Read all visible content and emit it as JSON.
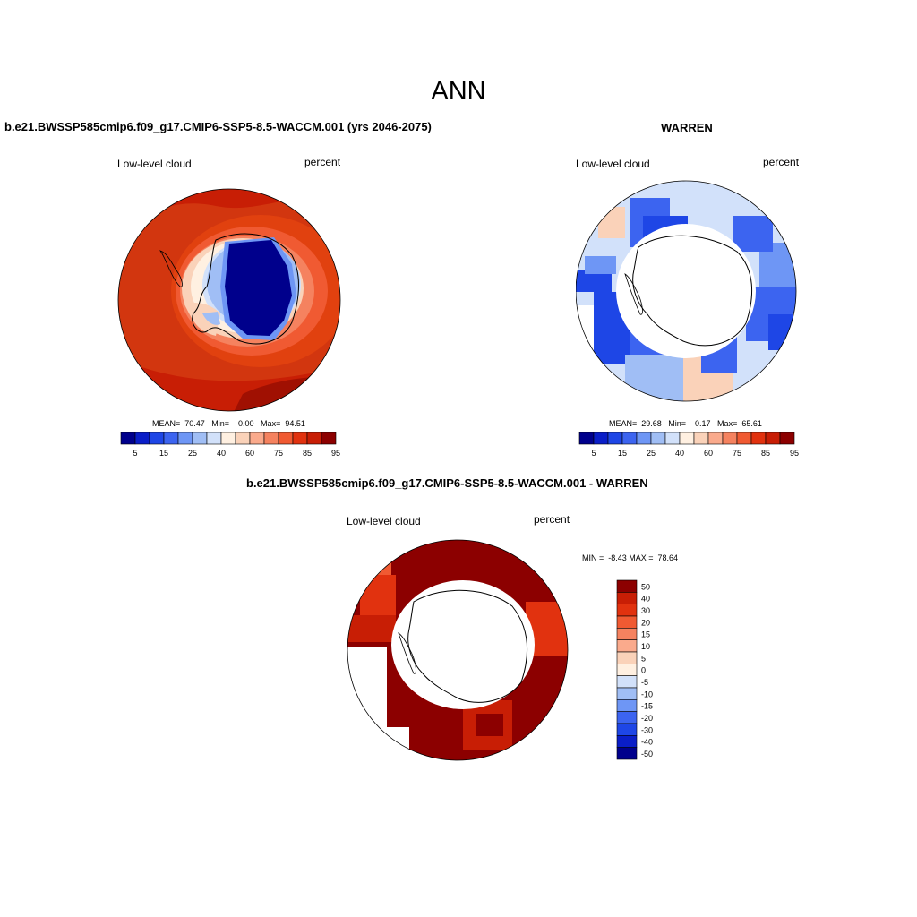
{
  "page": {
    "title": "ANN"
  },
  "panels": [
    {
      "id": "model",
      "title": "b.e21.BWSSP585cmip6.f09_g17.CMIP6-SSP5-8.5-WACCM.001 (yrs 2046-2075)",
      "left_label": "Low-level cloud",
      "right_label": "percent",
      "stats": "MEAN=  70.47   Min=    0.00   Max=  94.51"
    },
    {
      "id": "obs",
      "title": "WARREN",
      "left_label": "Low-level cloud",
      "right_label": "percent",
      "stats": "MEAN=  29.68   Min=    0.17   Max=  65.61"
    },
    {
      "id": "diff",
      "title": "b.e21.BWSSP585cmip6.f09_g17.CMIP6-SSP5-8.5-WACCM.001 - WARREN",
      "left_label": "Low-level cloud",
      "right_label": "percent",
      "stats": "MIN =  -8.43 MAX =  78.64"
    }
  ],
  "colorbar_abs": {
    "ticks": [
      "5",
      "15",
      "25",
      "40",
      "60",
      "75",
      "85",
      "95"
    ],
    "colors": [
      "#00008c",
      "#0a1ec8",
      "#1e46e6",
      "#3c64f0",
      "#6e96f5",
      "#a0bef5",
      "#d2e1fa",
      "#fff0e1",
      "#fad2b9",
      "#faaa8c",
      "#f5825f",
      "#f05a32",
      "#e1320f",
      "#c81e05",
      "#8c0000"
    ]
  },
  "colorbar_diff": {
    "ticks": [
      "50",
      "40",
      "30",
      "20",
      "15",
      "10",
      "5",
      "0",
      "-5",
      "-10",
      "-15",
      "-20",
      "-30",
      "-40",
      "-50"
    ],
    "colors": [
      "#8c0000",
      "#c81e05",
      "#e1320f",
      "#f05a32",
      "#f5825f",
      "#faaa8c",
      "#fad2b9",
      "#fff0e1",
      "#d2e1fa",
      "#a0bef5",
      "#6e96f5",
      "#3c64f0",
      "#1e46e6",
      "#0a1ec8",
      "#00008c"
    ]
  }
}
